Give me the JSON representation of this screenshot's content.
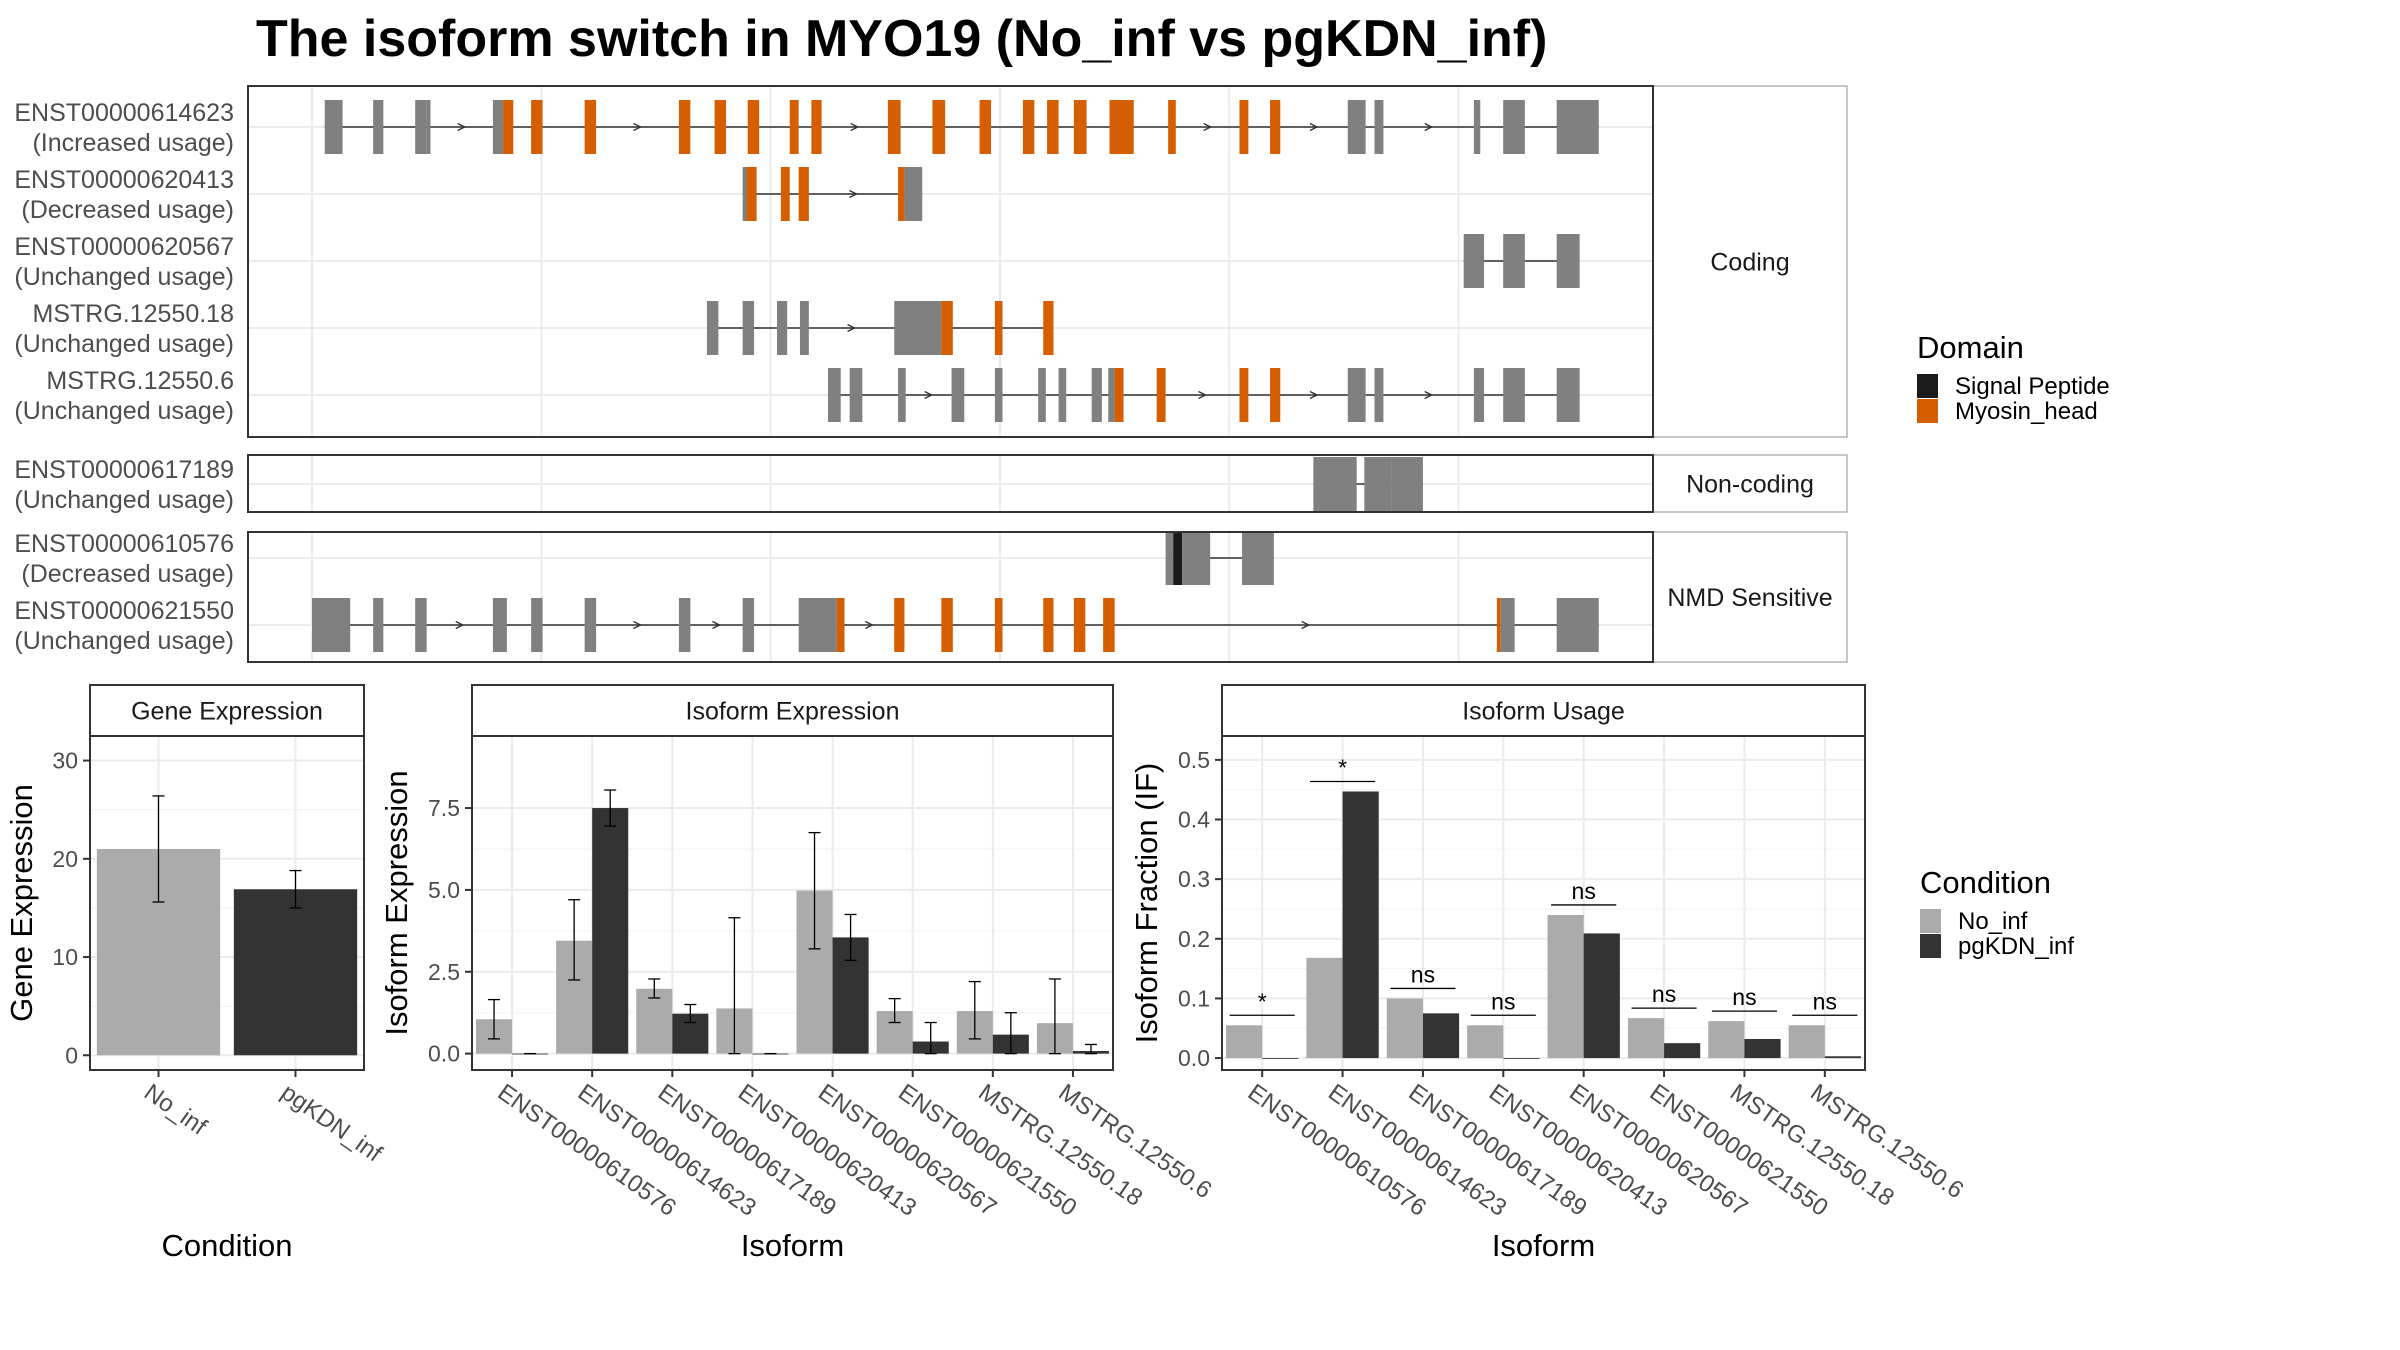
{
  "title": "The isoform switch in MYO19 (No_inf vs pgKDN_inf)",
  "colors": {
    "exon": "#808080",
    "myosin": "#D55E00",
    "signal": "#1a1a1a",
    "no_inf": "#ababab",
    "pgkdn": "#333333",
    "grid": "#ebebeb",
    "panel_border": "#333333",
    "strip_bg": "#ffffff"
  },
  "structure": {
    "groups": [
      {
        "label": "Coding",
        "transcripts": [
          {
            "id": "ENST00000614623",
            "usage": "(Increased usage)",
            "exons": [
              [
                0.01,
                0.024,
                "n"
              ],
              [
                0.048,
                0.056,
                "n"
              ],
              [
                0.081,
                0.09,
                "n"
              ],
              [
                0.09,
                0.093,
                "n"
              ],
              [
                0.142,
                0.15,
                "n"
              ],
              [
                0.15,
                0.158,
                "m"
              ],
              [
                0.172,
                0.181,
                "m"
              ],
              [
                0.214,
                0.223,
                "m"
              ],
              [
                0.288,
                0.297,
                "m"
              ],
              [
                0.316,
                0.325,
                "m"
              ],
              [
                0.342,
                0.351,
                "m"
              ],
              [
                0.375,
                0.382,
                "m"
              ],
              [
                0.392,
                0.4,
                "m"
              ],
              [
                0.452,
                0.462,
                "m"
              ],
              [
                0.487,
                0.497,
                "m"
              ],
              [
                0.524,
                0.533,
                "m"
              ],
              [
                0.558,
                0.567,
                "m"
              ],
              [
                0.577,
                0.586,
                "m"
              ],
              [
                0.598,
                0.608,
                "m"
              ],
              [
                0.626,
                0.645,
                "m"
              ],
              [
                0.672,
                0.678,
                "m"
              ],
              [
                0.728,
                0.735,
                "m"
              ],
              [
                0.752,
                0.76,
                "m"
              ],
              [
                0.813,
                0.827,
                "n"
              ],
              [
                0.834,
                0.841,
                "n"
              ],
              [
                0.912,
                0.917,
                "n"
              ],
              [
                0.935,
                0.952,
                "n"
              ],
              [
                0.977,
                1.01,
                "n"
              ]
            ]
          },
          {
            "id": "ENST00000620413",
            "usage": "(Decreased usage)",
            "exons": [
              [
                0.338,
                0.341,
                "n"
              ],
              [
                0.341,
                0.349,
                "m"
              ],
              [
                0.368,
                0.375,
                "m"
              ],
              [
                0.382,
                0.39,
                "m"
              ],
              [
                0.46,
                0.465,
                "m"
              ],
              [
                0.465,
                0.479,
                "n"
              ]
            ]
          },
          {
            "id": "ENST00000620567",
            "usage": "(Unchanged usage)",
            "exons": [
              [
                0.904,
                0.92,
                "n"
              ],
              [
                0.935,
                0.952,
                "n"
              ],
              [
                0.977,
                0.995,
                "n"
              ]
            ]
          },
          {
            "id": "MSTRG.12550.18",
            "usage": "(Unchanged usage)",
            "exons": [
              [
                0.31,
                0.319,
                "n"
              ],
              [
                0.338,
                0.347,
                "n"
              ],
              [
                0.365,
                0.373,
                "n"
              ],
              [
                0.383,
                0.39,
                "n"
              ],
              [
                0.457,
                0.494,
                "n"
              ],
              [
                0.494,
                0.503,
                "m"
              ],
              [
                0.536,
                0.542,
                "m"
              ],
              [
                0.574,
                0.582,
                "m"
              ]
            ]
          },
          {
            "id": "MSTRG.12550.6",
            "usage": "(Unchanged usage)",
            "exons": [
              [
                0.405,
                0.415,
                "n"
              ],
              [
                0.422,
                0.432,
                "n"
              ],
              [
                0.46,
                0.466,
                "n"
              ],
              [
                0.502,
                0.512,
                "n"
              ],
              [
                0.536,
                0.542,
                "n"
              ],
              [
                0.57,
                0.576,
                "n"
              ],
              [
                0.586,
                0.592,
                "n"
              ],
              [
                0.612,
                0.62,
                "n"
              ],
              [
                0.625,
                0.63,
                "n"
              ],
              [
                0.63,
                0.637,
                "m"
              ],
              [
                0.663,
                0.67,
                "m"
              ],
              [
                0.728,
                0.735,
                "m"
              ],
              [
                0.752,
                0.76,
                "m"
              ],
              [
                0.813,
                0.827,
                "n"
              ],
              [
                0.834,
                0.841,
                "n"
              ],
              [
                0.912,
                0.92,
                "n"
              ],
              [
                0.935,
                0.952,
                "n"
              ],
              [
                0.977,
                0.995,
                "n"
              ]
            ]
          }
        ]
      },
      {
        "label": "Non-coding",
        "transcripts": [
          {
            "id": "ENST00000617189",
            "usage": "(Unchanged usage)",
            "exons": [
              [
                0.786,
                0.82,
                "n"
              ],
              [
                0.826,
                0.847,
                "n"
              ],
              [
                0.847,
                0.872,
                "n"
              ]
            ]
          }
        ]
      },
      {
        "label": "NMD Sensitive",
        "transcripts": [
          {
            "id": "ENST00000610576",
            "usage": "(Decreased usage)",
            "exons": [
              [
                0.67,
                0.676,
                "n"
              ],
              [
                0.676,
                0.683,
                "s"
              ],
              [
                0.683,
                0.705,
                "n"
              ],
              [
                0.73,
                0.755,
                "n"
              ]
            ]
          },
          {
            "id": "ENST00000621550",
            "usage": "(Unchanged usage)",
            "exons": [
              [
                0.0,
                0.03,
                "n"
              ],
              [
                0.048,
                0.056,
                "n"
              ],
              [
                0.081,
                0.09,
                "n"
              ],
              [
                0.142,
                0.153,
                "n"
              ],
              [
                0.172,
                0.181,
                "n"
              ],
              [
                0.214,
                0.223,
                "n"
              ],
              [
                0.288,
                0.297,
                "n"
              ],
              [
                0.338,
                0.347,
                "n"
              ],
              [
                0.382,
                0.412,
                "n"
              ],
              [
                0.412,
                0.418,
                "m"
              ],
              [
                0.457,
                0.465,
                "m"
              ],
              [
                0.494,
                0.503,
                "m"
              ],
              [
                0.536,
                0.542,
                "m"
              ],
              [
                0.574,
                0.582,
                "m"
              ],
              [
                0.598,
                0.607,
                "m"
              ],
              [
                0.621,
                0.63,
                "m"
              ],
              [
                0.93,
                0.933,
                "m"
              ],
              [
                0.933,
                0.944,
                "n"
              ],
              [
                0.977,
                1.01,
                "n"
              ]
            ]
          }
        ]
      }
    ]
  },
  "legends": {
    "domain": {
      "title": "Domain",
      "items": [
        {
          "label": "Signal Peptide",
          "color": "#1a1a1a"
        },
        {
          "label": "Myosin_head",
          "color": "#D55E00"
        }
      ]
    },
    "condition": {
      "title": "Condition",
      "items": [
        {
          "label": "No_inf",
          "color": "#ababab"
        },
        {
          "label": "pgKDN_inf",
          "color": "#333333"
        }
      ]
    }
  },
  "chart_data": [
    {
      "type": "bar",
      "title": "Gene Expression",
      "xlabel": "Condition",
      "ylabel": "Gene Expression",
      "categories": [
        "No_inf",
        "pgKDN_inf"
      ],
      "values": [
        21.0,
        16.9
      ],
      "errors": [
        [
          15.6,
          26.4
        ],
        [
          15.0,
          18.8
        ]
      ],
      "ylim": [
        -1.5,
        32.5
      ],
      "yticks": [
        0,
        10,
        20,
        30
      ],
      "grid": true
    },
    {
      "type": "bar",
      "title": "Isoform Expression",
      "xlabel": "Isoform",
      "ylabel": "Isoform Expression",
      "categories": [
        "ENST00000610576",
        "ENST00000614623",
        "ENST00000617189",
        "ENST00000620413",
        "ENST00000620567",
        "ENST00000621550",
        "MSTRG.12550.18",
        "MSTRG.12550.6"
      ],
      "series": [
        {
          "name": "No_inf",
          "values": [
            1.05,
            3.45,
            1.98,
            1.38,
            4.98,
            1.3,
            1.3,
            0.93
          ],
          "errors": [
            [
              0.45,
              1.65
            ],
            [
              2.25,
              4.7
            ],
            [
              1.7,
              2.28
            ],
            [
              0.0,
              4.15
            ],
            [
              3.2,
              6.75
            ],
            [
              0.95,
              1.68
            ],
            [
              0.45,
              2.2
            ],
            [
              0.0,
              2.28
            ]
          ]
        },
        {
          "name": "pgKDN_inf",
          "values": [
            0.0,
            7.5,
            1.22,
            0.0,
            3.55,
            0.37,
            0.58,
            0.08
          ],
          "errors": [
            [
              0.0,
              0.0
            ],
            [
              6.95,
              8.05
            ],
            [
              0.95,
              1.5
            ],
            [
              0.0,
              0.0
            ],
            [
              2.85,
              4.25
            ],
            [
              0.0,
              0.95
            ],
            [
              0.0,
              1.25
            ],
            [
              0.0,
              0.28
            ]
          ]
        }
      ],
      "ylim": [
        -0.5,
        9.7
      ],
      "yticks": [
        0.0,
        2.5,
        5.0,
        7.5
      ],
      "grid": true
    },
    {
      "type": "bar",
      "title": "Isoform Usage",
      "xlabel": "Isoform",
      "ylabel": "Isoform Fraction (IF)",
      "categories": [
        "ENST00000610576",
        "ENST00000614623",
        "ENST00000617189",
        "ENST00000620413",
        "ENST00000620567",
        "ENST00000621550",
        "MSTRG.12550.18",
        "MSTRG.12550.6"
      ],
      "series": [
        {
          "name": "No_inf",
          "values": [
            0.055,
            0.168,
            0.1,
            0.055,
            0.24,
            0.067,
            0.062,
            0.055
          ]
        },
        {
          "name": "pgKDN_inf",
          "values": [
            0.0,
            0.447,
            0.075,
            0.0,
            0.209,
            0.025,
            0.032,
            0.003
          ]
        }
      ],
      "significance": [
        "*",
        "*",
        "ns",
        "ns",
        "ns",
        "ns",
        "ns",
        "ns"
      ],
      "ylim": [
        -0.02,
        0.54
      ],
      "yticks": [
        0.0,
        0.1,
        0.2,
        0.3,
        0.4,
        0.5
      ],
      "grid": true
    }
  ]
}
